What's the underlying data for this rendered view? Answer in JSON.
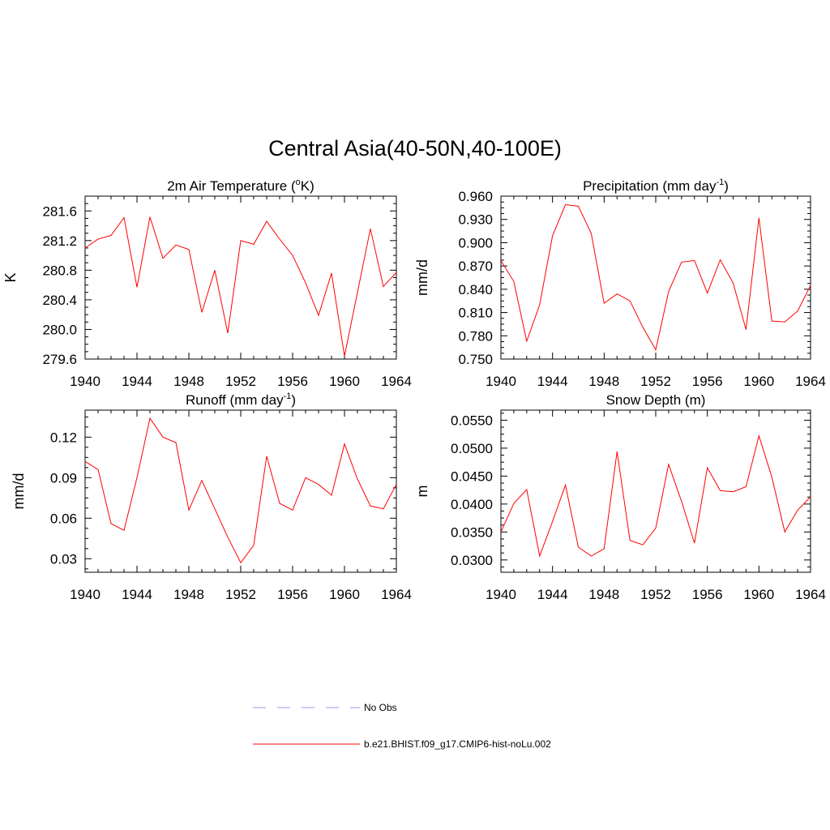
{
  "title": "Central Asia(40-50N,40-100E)",
  "legend": [
    {
      "label": "No Obs",
      "color": "#9999ee",
      "dash": true
    },
    {
      "label": "b.e21.BHIST.f09_g17.CMIP6-hist-noLu.002",
      "color": "#ff0000",
      "dash": false
    }
  ],
  "chart_data": [
    {
      "type": "line",
      "title": "2m Air Temperature (°K)",
      "title_parts": [
        "2m Air Temperature (",
        "o",
        "K)"
      ],
      "ylabel": "K",
      "xlim": [
        1940,
        1964
      ],
      "ylim": [
        279.6,
        281.8
      ],
      "xticks": [
        "1940",
        "1944",
        "1948",
        "1952",
        "1956",
        "1960",
        "1964"
      ],
      "yticks": [
        "279.6",
        "280.0",
        "280.4",
        "280.8",
        "281.2",
        "281.6"
      ],
      "color": "#ff0000",
      "x": [
        1940,
        1941,
        1942,
        1943,
        1944,
        1945,
        1946,
        1947,
        1948,
        1949,
        1950,
        1951,
        1952,
        1953,
        1954,
        1955,
        1956,
        1957,
        1958,
        1959,
        1960,
        1961,
        1962,
        1963,
        1964
      ],
      "values": [
        281.1,
        281.22,
        281.27,
        281.51,
        280.57,
        281.52,
        280.96,
        281.14,
        281.08,
        280.23,
        280.8,
        279.95,
        281.2,
        281.15,
        281.46,
        281.22,
        281.0,
        280.63,
        280.19,
        280.76,
        279.64,
        280.5,
        281.36,
        280.58,
        280.77
      ]
    },
    {
      "type": "line",
      "title": "Precipitation (mm day-1)",
      "title_parts": [
        "Precipitation (mm day",
        "-1",
        ")"
      ],
      "ylabel": "mm/d",
      "xlim": [
        1940,
        1964
      ],
      "ylim": [
        0.75,
        0.96
      ],
      "xticks": [
        "1940",
        "1944",
        "1948",
        "1952",
        "1956",
        "1960",
        "1964"
      ],
      "yticks": [
        "0.750",
        "0.780",
        "0.810",
        "0.840",
        "0.870",
        "0.900",
        "0.930",
        "0.960"
      ],
      "color": "#ff0000",
      "x": [
        1940,
        1941,
        1942,
        1943,
        1944,
        1945,
        1946,
        1947,
        1948,
        1949,
        1950,
        1951,
        1952,
        1953,
        1954,
        1955,
        1956,
        1957,
        1958,
        1959,
        1960,
        1961,
        1962,
        1963,
        1964
      ],
      "values": [
        0.877,
        0.85,
        0.773,
        0.82,
        0.909,
        0.949,
        0.947,
        0.912,
        0.822,
        0.834,
        0.825,
        0.791,
        0.762,
        0.837,
        0.875,
        0.877,
        0.835,
        0.878,
        0.848,
        0.788,
        0.932,
        0.799,
        0.798,
        0.812,
        0.845
      ]
    },
    {
      "type": "line",
      "title": "Runoff (mm day-1)",
      "title_parts": [
        "Runoff (mm day",
        "-1",
        ")"
      ],
      "ylabel": "mm/d",
      "xlim": [
        1940,
        1964
      ],
      "ylim": [
        0.02,
        0.14
      ],
      "xticks": [
        "1940",
        "1944",
        "1948",
        "1952",
        "1956",
        "1960",
        "1964"
      ],
      "yticks": [
        "0.03",
        "0.06",
        "0.09",
        "0.12"
      ],
      "color": "#ff0000",
      "x": [
        1940,
        1941,
        1942,
        1943,
        1944,
        1945,
        1946,
        1947,
        1948,
        1949,
        1950,
        1951,
        1952,
        1953,
        1954,
        1955,
        1956,
        1957,
        1958,
        1959,
        1960,
        1961,
        1962,
        1963,
        1964
      ],
      "values": [
        0.102,
        0.096,
        0.056,
        0.051,
        0.09,
        0.134,
        0.12,
        0.116,
        0.066,
        0.088,
        0.067,
        0.046,
        0.027,
        0.04,
        0.106,
        0.071,
        0.066,
        0.09,
        0.085,
        0.077,
        0.115,
        0.089,
        0.069,
        0.067,
        0.085
      ]
    },
    {
      "type": "line",
      "title": "Snow Depth (m)",
      "title_parts": [
        "Snow Depth (m)",
        "",
        ""
      ],
      "ylabel": "m",
      "xlim": [
        1940,
        1964
      ],
      "ylim": [
        0.0278,
        0.0568
      ],
      "xticks": [
        "1940",
        "1944",
        "1948",
        "1952",
        "1956",
        "1960",
        "1964"
      ],
      "yticks": [
        "0.0300",
        "0.0350",
        "0.0400",
        "0.0450",
        "0.0500",
        "0.0550"
      ],
      "color": "#ff0000",
      "x": [
        1940,
        1941,
        1942,
        1943,
        1944,
        1945,
        1946,
        1947,
        1948,
        1949,
        1950,
        1951,
        1952,
        1953,
        1954,
        1955,
        1956,
        1957,
        1958,
        1959,
        1960,
        1961,
        1962,
        1963,
        1964
      ],
      "values": [
        0.035,
        0.0401,
        0.0426,
        0.0307,
        0.0369,
        0.0434,
        0.0323,
        0.0307,
        0.032,
        0.0494,
        0.0335,
        0.0327,
        0.0357,
        0.0471,
        0.0405,
        0.033,
        0.0465,
        0.0424,
        0.0422,
        0.0431,
        0.0522,
        0.0448,
        0.035,
        0.0389,
        0.0413
      ]
    }
  ]
}
